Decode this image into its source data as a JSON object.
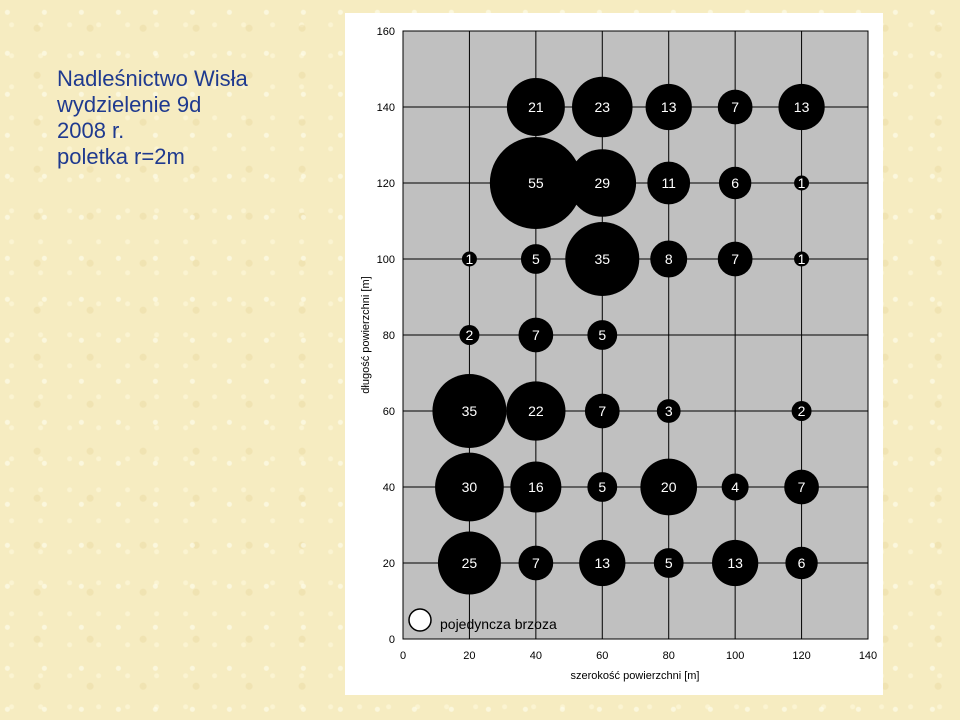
{
  "caption": {
    "lines": [
      "Nadleśnictwo Wisła",
      "wydzielenie 9d",
      "2008 r.",
      "poletka r=2m"
    ]
  },
  "chart_data": {
    "type": "bubble",
    "xlabel": "szerokość powierzchni [m]",
    "ylabel": "długość powierzchni [m]",
    "xlim": [
      0,
      140
    ],
    "ylim": [
      0,
      160
    ],
    "xticks": [
      0,
      20,
      40,
      60,
      80,
      100,
      120,
      140
    ],
    "yticks": [
      0,
      20,
      40,
      60,
      80,
      100,
      120,
      140,
      160
    ],
    "grid": true,
    "legend": {
      "label": "pojedyncza brzoza",
      "value": 1
    },
    "points": [
      {
        "x": 40,
        "y": 140,
        "n": 21
      },
      {
        "x": 60,
        "y": 140,
        "n": 23
      },
      {
        "x": 80,
        "y": 140,
        "n": 13
      },
      {
        "x": 100,
        "y": 140,
        "n": 7
      },
      {
        "x": 120,
        "y": 140,
        "n": 13
      },
      {
        "x": 40,
        "y": 120,
        "n": 55
      },
      {
        "x": 60,
        "y": 120,
        "n": 29
      },
      {
        "x": 80,
        "y": 120,
        "n": 11
      },
      {
        "x": 100,
        "y": 120,
        "n": 6
      },
      {
        "x": 120,
        "y": 120,
        "n": 1
      },
      {
        "x": 20,
        "y": 100,
        "n": 1
      },
      {
        "x": 40,
        "y": 100,
        "n": 5
      },
      {
        "x": 60,
        "y": 100,
        "n": 35
      },
      {
        "x": 80,
        "y": 100,
        "n": 8
      },
      {
        "x": 100,
        "y": 100,
        "n": 7
      },
      {
        "x": 120,
        "y": 100,
        "n": 1
      },
      {
        "x": 20,
        "y": 80,
        "n": 2
      },
      {
        "x": 40,
        "y": 80,
        "n": 7
      },
      {
        "x": 60,
        "y": 80,
        "n": 5
      },
      {
        "x": 20,
        "y": 60,
        "n": 35
      },
      {
        "x": 40,
        "y": 60,
        "n": 22
      },
      {
        "x": 60,
        "y": 60,
        "n": 7
      },
      {
        "x": 80,
        "y": 60,
        "n": 3
      },
      {
        "x": 120,
        "y": 60,
        "n": 2
      },
      {
        "x": 20,
        "y": 40,
        "n": 30
      },
      {
        "x": 40,
        "y": 40,
        "n": 16
      },
      {
        "x": 60,
        "y": 40,
        "n": 5
      },
      {
        "x": 80,
        "y": 40,
        "n": 20
      },
      {
        "x": 100,
        "y": 40,
        "n": 4
      },
      {
        "x": 120,
        "y": 40,
        "n": 7
      },
      {
        "x": 20,
        "y": 20,
        "n": 25
      },
      {
        "x": 40,
        "y": 20,
        "n": 7
      },
      {
        "x": 60,
        "y": 20,
        "n": 13
      },
      {
        "x": 80,
        "y": 20,
        "n": 5
      },
      {
        "x": 100,
        "y": 20,
        "n": 13
      },
      {
        "x": 120,
        "y": 20,
        "n": 6
      }
    ],
    "colors": {
      "plot_bg": "#c0c0c0",
      "bubble": "#000000",
      "bubble_label": "#ffffff",
      "grid": "#000000",
      "caption": "#1f3a8f"
    }
  }
}
